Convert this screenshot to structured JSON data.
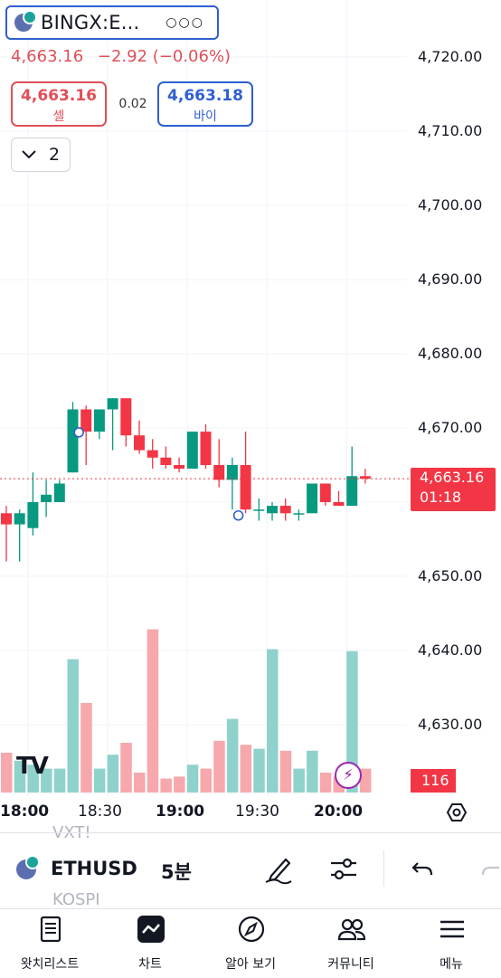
{
  "header": {
    "symbol": "BINGX:E...",
    "more_icon": "ellipsis-icon",
    "last_price": "4,663.16",
    "change": "−2.92 (−0.06%)",
    "sell_price": "4,663.16",
    "sell_label": "셀",
    "spread": "0.02",
    "buy_price": "4,663.18",
    "buy_label": "바이",
    "interval_collapse_icon": "chevron-down-icon",
    "interval_count": "2"
  },
  "chart_data": {
    "type": "candlestick",
    "y_axis_ticks": [
      "4,720.00",
      "4,710.00",
      "4,700.00",
      "4,690.00",
      "4,680.00",
      "4,670.00",
      "4,650.00",
      "4,640.00",
      "4,630.00"
    ],
    "x_axis_ticks": [
      "18:00",
      "18:30",
      "19:00",
      "19:30",
      "20:00"
    ],
    "ylim": [
      4624.5,
      4725
    ],
    "current_price_label": "4,663.16",
    "countdown_label": "01:18",
    "volume_label": "116",
    "colors": {
      "up": "#089981",
      "down": "#f23645",
      "vol_up": "#8fd2cb",
      "vol_down": "#f6a8ac"
    },
    "candles": [
      {
        "o": 4658.5,
        "h": 4659.5,
        "l": 4652.0,
        "c": 4657.0,
        "v": 0.2
      },
      {
        "o": 4657.0,
        "h": 4659.0,
        "l": 4652.0,
        "c": 4658.5,
        "v": 0.16
      },
      {
        "o": 4656.5,
        "h": 4664.0,
        "l": 4655.5,
        "c": 4660.0,
        "v": 0.14
      },
      {
        "o": 4660.0,
        "h": 4663.0,
        "l": 4658.0,
        "c": 4661.0,
        "v": 0.12
      },
      {
        "o": 4660.0,
        "h": 4663.0,
        "l": 4660.0,
        "c": 4662.5,
        "v": 0.12
      },
      {
        "o": 4664.0,
        "h": 4673.5,
        "l": 4664.0,
        "c": 4672.5,
        "v": 0.67
      },
      {
        "o": 4672.5,
        "h": 4673.0,
        "l": 4665.0,
        "c": 4669.5,
        "v": 0.45
      },
      {
        "o": 4669.5,
        "h": 4672.5,
        "l": 4668.5,
        "c": 4672.5,
        "v": 0.12
      },
      {
        "o": 4672.5,
        "h": 4674.0,
        "l": 4667.0,
        "c": 4674.0,
        "v": 0.19
      },
      {
        "o": 4674.0,
        "h": 4674.0,
        "l": 4667.5,
        "c": 4669.0,
        "v": 0.25
      },
      {
        "o": 4669.0,
        "h": 4671.0,
        "l": 4666.5,
        "c": 4667.0,
        "v": 0.1
      },
      {
        "o": 4667.0,
        "h": 4668.5,
        "l": 4664.5,
        "c": 4666.0,
        "v": 0.82
      },
      {
        "o": 4666.0,
        "h": 4667.5,
        "l": 4664.5,
        "c": 4665.0,
        "v": 0.07
      },
      {
        "o": 4665.0,
        "h": 4666.0,
        "l": 4664.0,
        "c": 4664.5,
        "v": 0.08
      },
      {
        "o": 4664.5,
        "h": 4669.5,
        "l": 4664.5,
        "c": 4669.5,
        "v": 0.14
      },
      {
        "o": 4669.5,
        "h": 4670.5,
        "l": 4664.5,
        "c": 4665.0,
        "v": 0.12
      },
      {
        "o": 4665.0,
        "h": 4668.5,
        "l": 4662.0,
        "c": 4663.0,
        "v": 0.26
      },
      {
        "o": 4663.0,
        "h": 4666.0,
        "l": 4659.0,
        "c": 4665.0,
        "v": 0.37
      },
      {
        "o": 4665.0,
        "h": 4669.5,
        "l": 4658.5,
        "c": 4659.0,
        "v": 0.24
      },
      {
        "o": 4659.0,
        "h": 4660.5,
        "l": 4657.5,
        "c": 4659.0,
        "v": 0.22
      },
      {
        "o": 4658.5,
        "h": 4660.0,
        "l": 4657.5,
        "c": 4659.5,
        "v": 0.72
      },
      {
        "o": 4659.5,
        "h": 4660.5,
        "l": 4657.5,
        "c": 4658.5,
        "v": 0.21
      },
      {
        "o": 4658.5,
        "h": 4659.0,
        "l": 4657.5,
        "c": 4658.5,
        "v": 0.12
      },
      {
        "o": 4658.5,
        "h": 4662.5,
        "l": 4658.5,
        "c": 4662.5,
        "v": 0.21
      },
      {
        "o": 4662.5,
        "h": 4662.5,
        "l": 4659.5,
        "c": 4660.0,
        "v": 0.1
      },
      {
        "o": 4660.0,
        "h": 4661.5,
        "l": 4659.5,
        "c": 4659.5,
        "v": 0.08
      },
      {
        "o": 4659.5,
        "h": 4667.5,
        "l": 4659.5,
        "c": 4663.5,
        "v": 0.71
      },
      {
        "o": 4663.5,
        "h": 4664.5,
        "l": 4662.5,
        "c": 4663.16,
        "v": 0.12
      }
    ],
    "markers": [
      {
        "index": 6,
        "price": 4669.4
      },
      {
        "index": 18,
        "price": 4658.2
      }
    ]
  },
  "overlay": {
    "logo_text": "TV",
    "bolt_icon": "lightning-icon",
    "settings_icon": "hexagon-settings-icon",
    "ghost_top": "VXT!",
    "ghost_bottom": "KOSPI"
  },
  "toolbar": {
    "symbol": "ETHUSDT",
    "interval": "5분",
    "draw_icon": "pen-icon",
    "indicators_icon": "sliders-icon",
    "undo_icon": "undo-icon",
    "redo_icon": "redo-icon"
  },
  "bottom_nav": [
    {
      "label": "왓치리스트",
      "icon": "watchlist-icon"
    },
    {
      "label": "차트",
      "icon": "chart-icon"
    },
    {
      "label": "알아 보기",
      "icon": "compass-icon"
    },
    {
      "label": "커뮤니티",
      "icon": "community-icon"
    },
    {
      "label": "메뉴",
      "icon": "menu-icon"
    }
  ]
}
